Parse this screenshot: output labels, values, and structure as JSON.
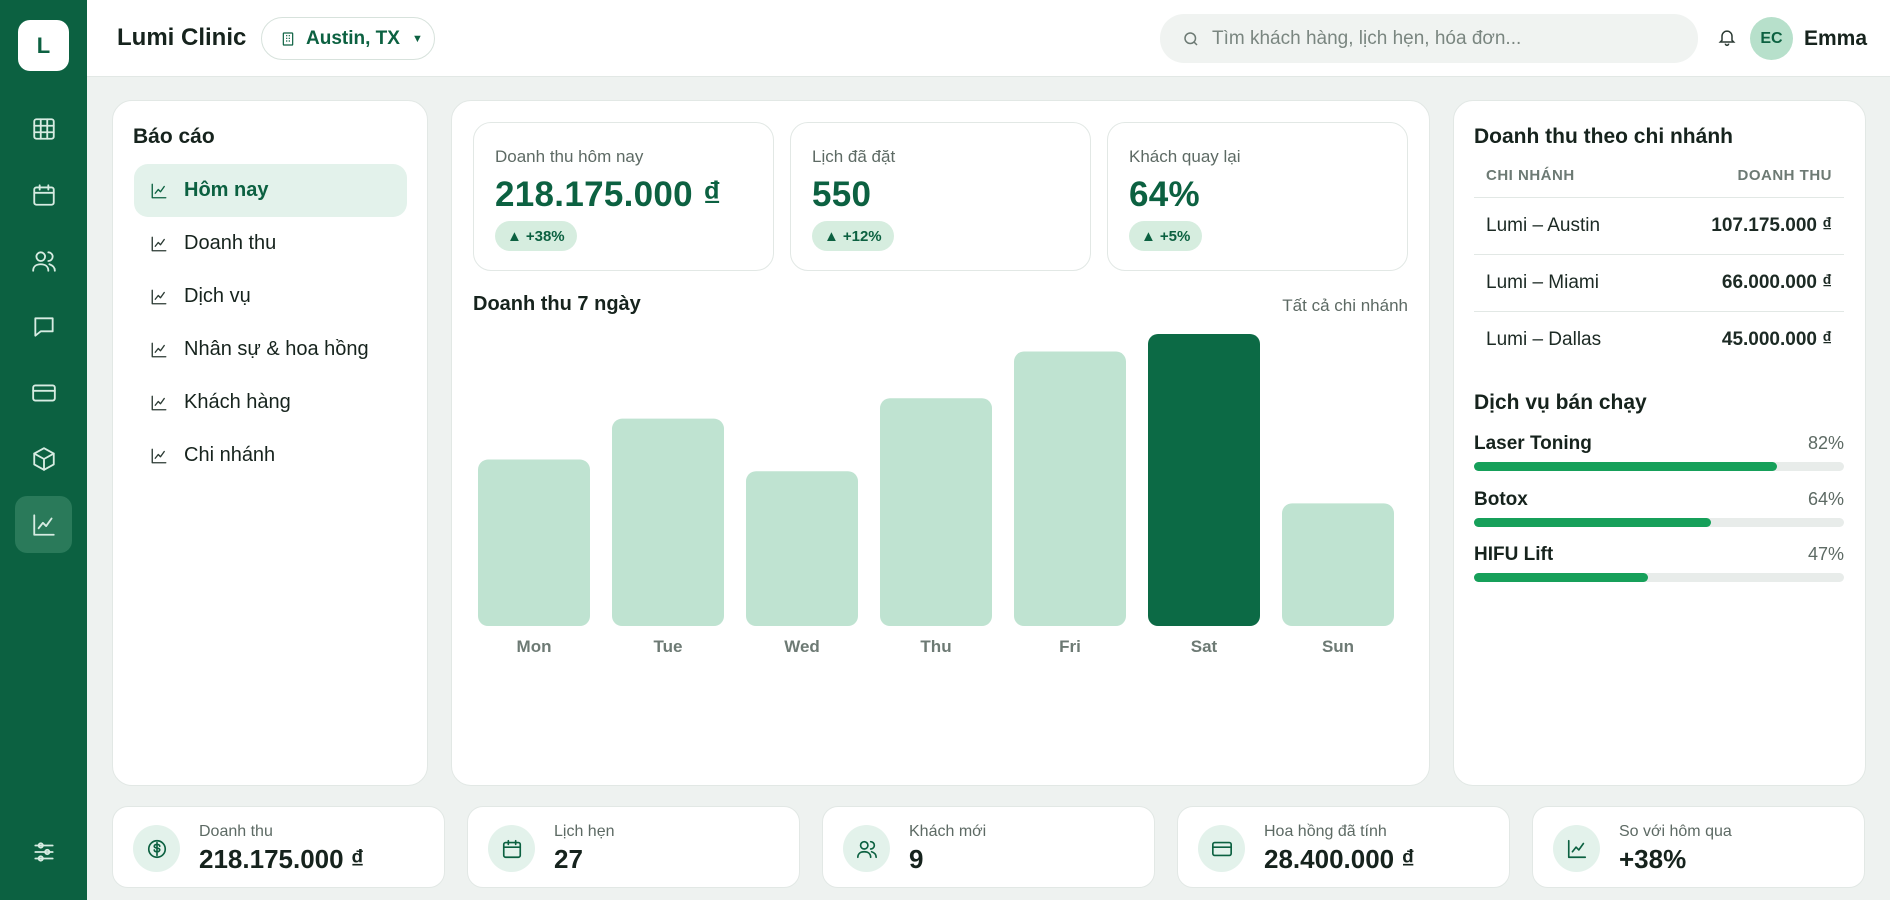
{
  "app": {
    "logo_letter": "L",
    "brand": "Lumi Clinic",
    "location": "Austin, TX",
    "search_placeholder": "Tìm khách hàng, lịch hẹn, hóa đơn...",
    "user_initials": "EC",
    "user_name": "Emma"
  },
  "rail": {
    "icons": [
      "grid-icon",
      "calendar-icon",
      "users-icon",
      "chat-icon",
      "card-icon",
      "box-icon",
      "chart-icon",
      "settings-sliders-icon"
    ],
    "active": "chart-icon"
  },
  "reports": {
    "title": "Báo cáo",
    "items": [
      {
        "label": "Hôm nay",
        "active": true
      },
      {
        "label": "Doanh thu",
        "active": false
      },
      {
        "label": "Dịch vụ",
        "active": false
      },
      {
        "label": "Nhân sự & hoa hồng",
        "active": false
      },
      {
        "label": "Khách hàng",
        "active": false
      },
      {
        "label": "Chi nhánh",
        "active": false
      }
    ]
  },
  "kpis": [
    {
      "label": "Doanh thu hôm nay",
      "value": "218.175.000 ₫",
      "delta": "+38%"
    },
    {
      "label": "Lịch đã đặt",
      "value": "550",
      "delta": "+12%"
    },
    {
      "label": "Khách quay lại",
      "value": "64%",
      "delta": "+5%"
    }
  ],
  "chart_title": "Doanh thu 7 ngày",
  "chart_filter": "Tất cả chi nhánh",
  "chart_data": {
    "type": "bar",
    "categories": [
      "Mon",
      "Tue",
      "Wed",
      "Thu",
      "Fri",
      "Sat",
      "Sun"
    ],
    "values": [
      57,
      71,
      53,
      78,
      94,
      100,
      42
    ],
    "highlight": "Sat",
    "colors": {
      "bar": "#bfe3d1",
      "highlight": "#0c6a45"
    },
    "ylim": [
      0,
      100
    ]
  },
  "branches": {
    "title": "Doanh thu theo chi nhánh",
    "col_branch": "CHI NHÁNH",
    "col_revenue": "DOANH THU",
    "rows": [
      {
        "name": "Lumi – Austin",
        "revenue": "107.175.000 ₫"
      },
      {
        "name": "Lumi – Miami",
        "revenue": "66.000.000 ₫"
      },
      {
        "name": "Lumi – Dallas",
        "revenue": "45.000.000 ₫"
      }
    ]
  },
  "services": {
    "title": "Dịch vụ bán chạy",
    "items": [
      {
        "name": "Laser Toning",
        "percent_label": "82%",
        "percent": 82
      },
      {
        "name": "Botox",
        "percent_label": "64%",
        "percent": 64
      },
      {
        "name": "HIFU Lift",
        "percent_label": "47%",
        "percent": 47
      }
    ]
  },
  "stats": [
    {
      "icon": "dollar-icon",
      "label": "Doanh thu",
      "value": "218.175.000 ₫"
    },
    {
      "icon": "calendar-icon",
      "label": "Lịch hẹn",
      "value": "27"
    },
    {
      "icon": "users-icon",
      "label": "Khách mới",
      "value": "9"
    },
    {
      "icon": "card-icon",
      "label": "Hoa hồng đã tính",
      "value": "28.400.000 ₫"
    },
    {
      "icon": "chart-icon",
      "label": "So với hôm qua",
      "value": "+38%"
    }
  ],
  "colors": {
    "brand": "#0c6141",
    "accent": "#16a05a",
    "soft": "#e3f2eb"
  }
}
